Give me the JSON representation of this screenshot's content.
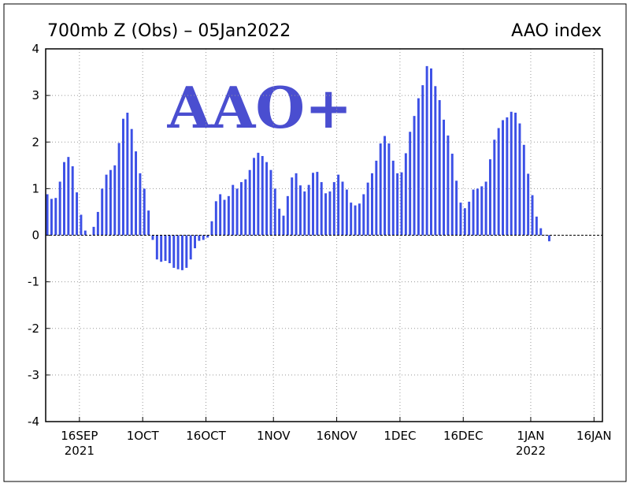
{
  "chart_data": {
    "type": "bar",
    "title": "700mb Z (Obs) – 05Jan2022",
    "subtitle": "AAO index",
    "annotation": "AAO+",
    "color": "#3c50e6",
    "grid": true,
    "x": [
      "2021-09-08",
      "2021-09-09",
      "2021-09-10",
      "2021-09-11",
      "2021-09-12",
      "2021-09-13",
      "2021-09-14",
      "2021-09-15",
      "2021-09-16",
      "2021-09-17",
      "2021-09-18",
      "2021-09-19",
      "2021-09-20",
      "2021-09-21",
      "2021-09-22",
      "2021-09-23",
      "2021-09-24",
      "2021-09-25",
      "2021-09-26",
      "2021-09-27",
      "2021-09-28",
      "2021-09-29",
      "2021-09-30",
      "2021-10-01",
      "2021-10-02",
      "2021-10-03",
      "2021-10-04",
      "2021-10-05",
      "2021-10-06",
      "2021-10-07",
      "2021-10-08",
      "2021-10-09",
      "2021-10-10",
      "2021-10-11",
      "2021-10-12",
      "2021-10-13",
      "2021-10-14",
      "2021-10-15",
      "2021-10-16",
      "2021-10-17",
      "2021-10-18",
      "2021-10-19",
      "2021-10-20",
      "2021-10-21",
      "2021-10-22",
      "2021-10-23",
      "2021-10-24",
      "2021-10-25",
      "2021-10-26",
      "2021-10-27",
      "2021-10-28",
      "2021-10-29",
      "2021-10-30",
      "2021-10-31",
      "2021-11-01",
      "2021-11-02",
      "2021-11-03",
      "2021-11-04",
      "2021-11-05",
      "2021-11-06",
      "2021-11-07",
      "2021-11-08",
      "2021-11-09",
      "2021-11-10",
      "2021-11-11",
      "2021-11-12",
      "2021-11-13",
      "2021-11-14",
      "2021-11-15",
      "2021-11-16",
      "2021-11-17",
      "2021-11-18",
      "2021-11-19",
      "2021-11-20",
      "2021-11-21",
      "2021-11-22",
      "2021-11-23",
      "2021-11-24",
      "2021-11-25",
      "2021-11-26",
      "2021-11-27",
      "2021-11-28",
      "2021-11-29",
      "2021-11-30",
      "2021-12-01",
      "2021-12-02",
      "2021-12-03",
      "2021-12-04",
      "2021-12-05",
      "2021-12-06",
      "2021-12-07",
      "2021-12-08",
      "2021-12-09",
      "2021-12-10",
      "2021-12-11",
      "2021-12-12",
      "2021-12-13",
      "2021-12-14",
      "2021-12-15",
      "2021-12-16",
      "2021-12-17",
      "2021-12-18",
      "2021-12-19",
      "2021-12-20",
      "2021-12-21",
      "2021-12-22",
      "2021-12-23",
      "2021-12-24",
      "2021-12-25",
      "2021-12-26",
      "2021-12-27",
      "2021-12-28",
      "2021-12-29",
      "2021-12-30",
      "2021-12-31",
      "2022-01-01",
      "2022-01-02",
      "2022-01-03",
      "2022-01-04",
      "2022-01-05"
    ],
    "values": [
      0.88,
      0.78,
      0.8,
      1.15,
      1.57,
      1.68,
      1.48,
      0.92,
      0.44,
      0.1,
      0.0,
      0.18,
      0.5,
      1.0,
      1.3,
      1.4,
      1.5,
      1.98,
      2.5,
      2.63,
      2.28,
      1.8,
      1.33,
      1.0,
      0.53,
      -0.1,
      -0.52,
      -0.57,
      -0.55,
      -0.6,
      -0.7,
      -0.73,
      -0.75,
      -0.7,
      -0.52,
      -0.28,
      -0.12,
      -0.1,
      -0.05,
      0.3,
      0.73,
      0.88,
      0.76,
      0.84,
      1.08,
      1.0,
      1.14,
      1.2,
      1.4,
      1.66,
      1.77,
      1.7,
      1.57,
      1.4,
      1.0,
      0.57,
      0.42,
      0.84,
      1.24,
      1.33,
      1.07,
      0.94,
      1.08,
      1.34,
      1.36,
      1.14,
      0.9,
      0.94,
      1.14,
      1.3,
      1.15,
      0.98,
      0.7,
      0.64,
      0.68,
      0.88,
      1.13,
      1.33,
      1.6,
      1.97,
      2.13,
      1.97,
      1.6,
      1.33,
      1.35,
      1.76,
      2.22,
      2.56,
      2.94,
      3.22,
      3.63,
      3.58,
      3.2,
      2.9,
      2.48,
      2.14,
      1.75,
      1.17,
      0.7,
      0.58,
      0.72,
      0.98,
      1.0,
      1.05,
      1.15,
      1.63,
      2.05,
      2.3,
      2.47,
      2.53,
      2.65,
      2.63,
      2.4,
      1.94,
      1.32,
      0.86,
      0.4,
      0.15,
      0.01,
      -0.13
    ],
    "xlim": [
      "2021-09-08",
      "2022-01-18"
    ],
    "xticks": [
      {
        "value": "2021-09-16",
        "label": "16SEP\n2021"
      },
      {
        "value": "2021-10-01",
        "label": "1OCT"
      },
      {
        "value": "2021-10-16",
        "label": "16OCT"
      },
      {
        "value": "2021-11-01",
        "label": "1NOV"
      },
      {
        "value": "2021-11-16",
        "label": "16NOV"
      },
      {
        "value": "2021-12-01",
        "label": "1DEC"
      },
      {
        "value": "2021-12-16",
        "label": "16DEC"
      },
      {
        "value": "2022-01-01",
        "label": "1JAN\n2022"
      },
      {
        "value": "2022-01-16",
        "label": "16JAN"
      }
    ],
    "ylim": [
      -4,
      4
    ],
    "yticks": [
      -4,
      -3,
      -2,
      -1,
      0,
      1,
      2,
      3,
      4
    ]
  }
}
